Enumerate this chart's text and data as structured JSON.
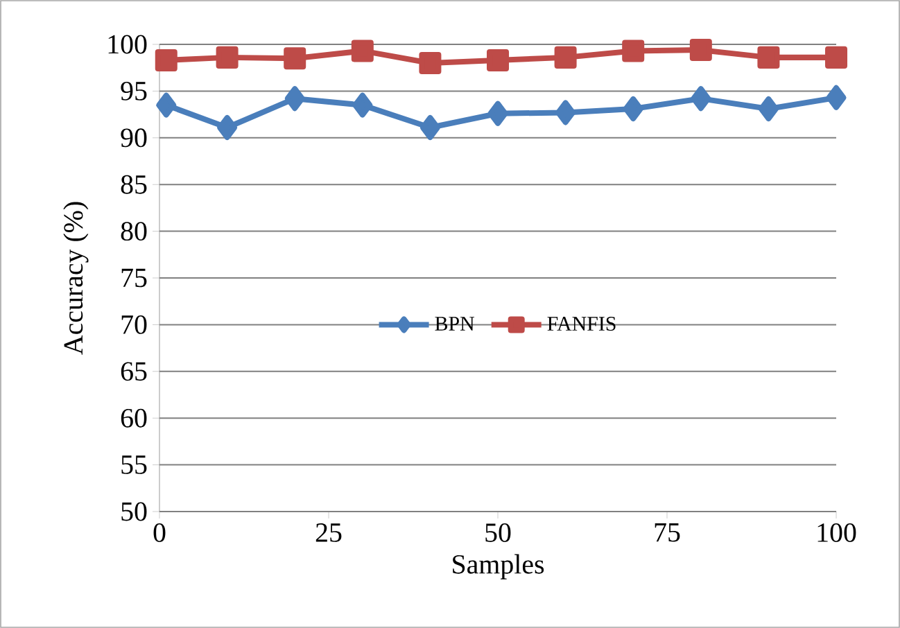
{
  "chart_data": {
    "type": "line",
    "xlabel": "Samples",
    "ylabel": "Accuracy (%)",
    "x": [
      1,
      10,
      20,
      30,
      40,
      50,
      60,
      70,
      80,
      90,
      100
    ],
    "series": [
      {
        "name": "BPN",
        "color": "#4a7ebb",
        "marker": "diamond",
        "values": [
          93.5,
          91.1,
          94.2,
          93.5,
          91.1,
          92.6,
          92.7,
          93.1,
          94.2,
          93.1,
          94.3
        ]
      },
      {
        "name": "FANFIS",
        "color": "#be4b48",
        "marker": "square",
        "values": [
          98.3,
          98.6,
          98.5,
          99.3,
          98.0,
          98.3,
          98.6,
          99.3,
          99.4,
          98.6,
          98.6
        ]
      }
    ],
    "xlim": [
      0,
      100
    ],
    "ylim": [
      50,
      100
    ],
    "xticks": [
      0,
      25,
      50,
      75,
      100
    ],
    "yticks": [
      50,
      55,
      60,
      65,
      70,
      75,
      80,
      85,
      90,
      95,
      100
    ],
    "grid": "y",
    "legend": "center"
  }
}
